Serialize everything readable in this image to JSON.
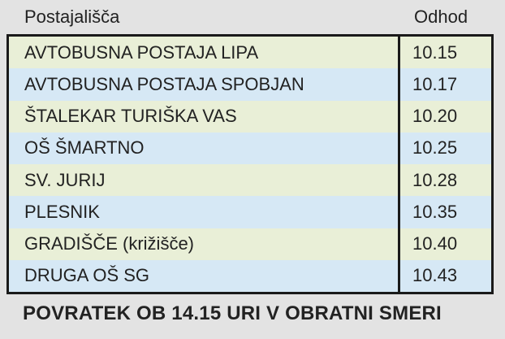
{
  "header": {
    "stops_label": "Postajališča",
    "departure_label": "Odhod"
  },
  "table": {
    "rows": [
      {
        "name": "AVTOBUSNA POSTAJA LIPA",
        "time": "10.15"
      },
      {
        "name": "AVTOBUSNA POSTAJA SPOBJAN",
        "time": "10.17"
      },
      {
        "name": "ŠTALEKAR TURIŠKA VAS",
        "time": "10.20"
      },
      {
        "name": "OŠ ŠMARTNO",
        "time": "10.25"
      },
      {
        "name": "SV. JURIJ",
        "time": "10.28"
      },
      {
        "name": "PLESNIK",
        "time": "10.35"
      },
      {
        "name": "GRADIŠČE (križišče)",
        "time": "10.40"
      },
      {
        "name": "DRUGA OŠ SG",
        "time": "10.43"
      }
    ]
  },
  "footer": {
    "text": "POVRATEK OB 14.15 URI V OBRATNI SMERI"
  },
  "colors": {
    "bg": "#e3e3e3",
    "row_green": "#e9efd7",
    "row_blue": "#d6e8f5",
    "border": "#1a1a1a",
    "text": "#222222"
  }
}
